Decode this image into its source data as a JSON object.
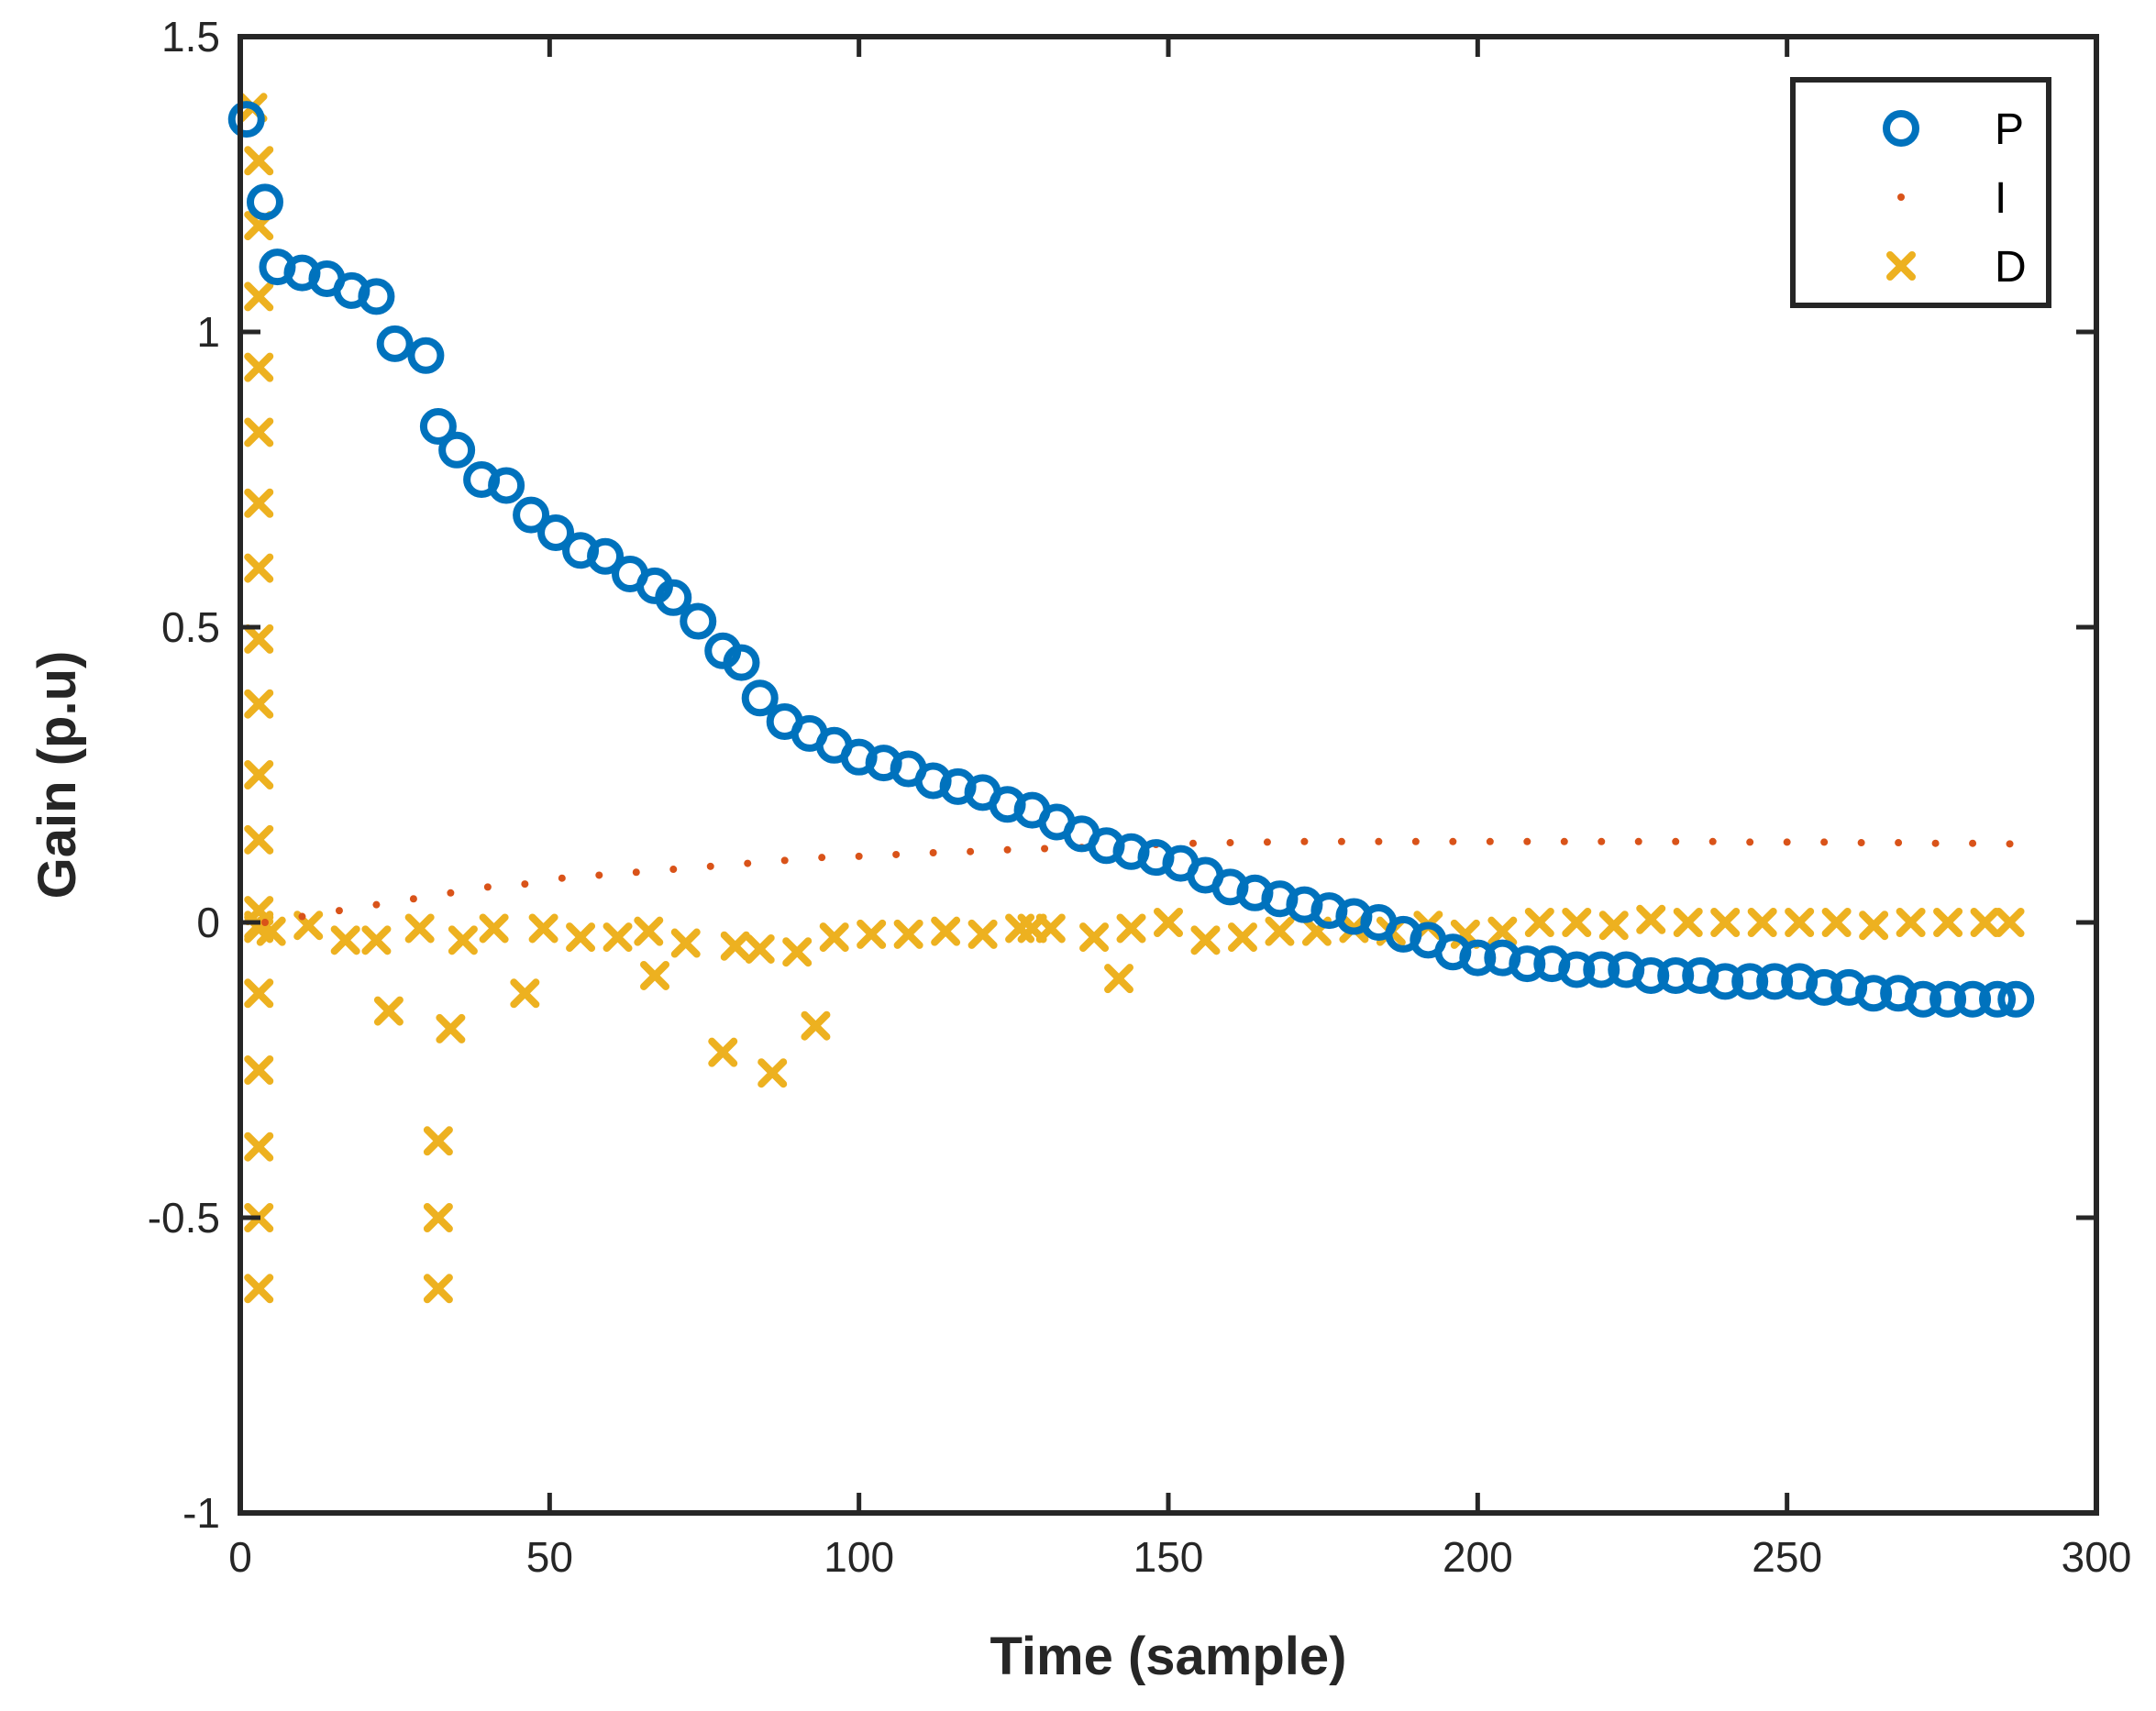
{
  "chart_data": {
    "type": "scatter",
    "title": "",
    "xlabel": "Time (sample)",
    "ylabel": "Gain (p.u)",
    "xlim": [
      0,
      300
    ],
    "ylim": [
      -1,
      1.5
    ],
    "xticks": [
      0,
      50,
      100,
      150,
      200,
      250,
      300
    ],
    "xtick_labels": [
      "0",
      "50",
      "100",
      "150",
      "200",
      "250",
      "300"
    ],
    "yticks": [
      -1,
      -0.5,
      0,
      0.5,
      1,
      1.5
    ],
    "ytick_labels": [
      "-1",
      "-0.5",
      "0",
      "0.5",
      "1",
      "1.5"
    ],
    "grid": false,
    "legend_position": "top-right",
    "colors": {
      "P": "#0072BD",
      "I": "#D95319",
      "D": "#EDB120",
      "axis": "#262626"
    },
    "series": [
      {
        "name": "P",
        "marker": "circle",
        "x": [
          1,
          4,
          6,
          10,
          14,
          18,
          22,
          25,
          30,
          32,
          35,
          39,
          43,
          47,
          51,
          55,
          59,
          63,
          67,
          70,
          74,
          78,
          81,
          84,
          88,
          92,
          96,
          100,
          104,
          108,
          112,
          116,
          120,
          124,
          128,
          132,
          136,
          140,
          144,
          148,
          152,
          156,
          160,
          164,
          168,
          172,
          176,
          180,
          184,
          188,
          192,
          196,
          200,
          204,
          208,
          212,
          216,
          220,
          224,
          228,
          232,
          236,
          240,
          244,
          248,
          252,
          256,
          260,
          264,
          268,
          272,
          276,
          280,
          284,
          287
        ],
        "y": [
          1.36,
          1.22,
          1.11,
          1.1,
          1.09,
          1.07,
          1.06,
          0.98,
          0.96,
          0.84,
          0.8,
          0.75,
          0.74,
          0.69,
          0.66,
          0.63,
          0.62,
          0.59,
          0.57,
          0.55,
          0.51,
          0.46,
          0.44,
          0.38,
          0.34,
          0.32,
          0.3,
          0.28,
          0.27,
          0.26,
          0.24,
          0.23,
          0.22,
          0.2,
          0.19,
          0.17,
          0.15,
          0.13,
          0.12,
          0.11,
          0.1,
          0.08,
          0.06,
          0.05,
          0.04,
          0.03,
          0.02,
          0.01,
          0.0,
          -0.02,
          -0.03,
          -0.05,
          -0.06,
          -0.06,
          -0.07,
          -0.07,
          -0.08,
          -0.08,
          -0.08,
          -0.09,
          -0.09,
          -0.09,
          -0.1,
          -0.1,
          -0.1,
          -0.1,
          -0.11,
          -0.11,
          -0.12,
          -0.12,
          -0.13,
          -0.13,
          -0.13,
          -0.13,
          -0.13
        ]
      },
      {
        "name": "I",
        "marker": "dot",
        "x": [
          4,
          10,
          16,
          22,
          28,
          34,
          40,
          46,
          52,
          58,
          64,
          70,
          76,
          82,
          88,
          94,
          100,
          106,
          112,
          118,
          124,
          130,
          136,
          142,
          148,
          154,
          160,
          166,
          172,
          178,
          184,
          190,
          196,
          202,
          208,
          214,
          220,
          226,
          232,
          238,
          244,
          250,
          256,
          262,
          268,
          274,
          280,
          286
        ],
        "y": [
          0.0,
          0.01,
          0.02,
          0.03,
          0.04,
          0.05,
          0.06,
          0.065,
          0.075,
          0.08,
          0.085,
          0.09,
          0.095,
          0.1,
          0.105,
          0.11,
          0.112,
          0.115,
          0.118,
          0.12,
          0.123,
          0.125,
          0.127,
          0.13,
          0.132,
          0.134,
          0.135,
          0.136,
          0.137,
          0.137,
          0.137,
          0.137,
          0.137,
          0.137,
          0.137,
          0.137,
          0.137,
          0.137,
          0.137,
          0.137,
          0.136,
          0.136,
          0.136,
          0.135,
          0.135,
          0.134,
          0.134,
          0.133
        ]
      },
      {
        "name": "D",
        "marker": "x",
        "x": [
          2,
          3,
          3,
          3,
          3,
          3,
          3,
          3,
          3,
          3,
          3,
          3,
          3,
          3,
          3,
          3,
          3,
          3,
          3,
          3,
          5,
          11,
          17,
          22,
          24,
          29,
          32,
          32,
          32,
          34,
          36,
          41,
          46,
          49,
          55,
          61,
          66,
          67,
          72,
          78,
          80,
          84,
          86,
          90,
          93,
          96,
          102,
          108,
          114,
          120,
          126,
          128,
          131,
          138,
          142,
          144,
          150,
          156,
          162,
          168,
          174,
          180,
          186,
          192,
          198,
          204,
          210,
          216,
          222,
          228,
          234,
          240,
          246,
          252,
          258,
          264,
          270,
          276,
          282,
          286
        ],
        "y": [
          1.38,
          1.29,
          1.18,
          1.06,
          0.94,
          0.83,
          0.71,
          0.6,
          0.48,
          0.37,
          0.25,
          0.14,
          0.02,
          -0.12,
          -0.25,
          -0.38,
          -0.5,
          -0.62,
          -0.005,
          -0.01,
          -0.015,
          -0.005,
          -0.03,
          -0.03,
          -0.15,
          -0.01,
          -0.37,
          -0.5,
          -0.62,
          -0.18,
          -0.03,
          -0.01,
          -0.12,
          -0.01,
          -0.025,
          -0.025,
          -0.015,
          -0.09,
          -0.035,
          -0.22,
          -0.04,
          -0.045,
          -0.255,
          -0.05,
          -0.175,
          -0.025,
          -0.02,
          -0.02,
          -0.015,
          -0.02,
          -0.01,
          -0.01,
          -0.01,
          -0.025,
          -0.095,
          -0.01,
          0.0,
          -0.03,
          -0.025,
          -0.015,
          -0.015,
          -0.01,
          -0.015,
          -0.005,
          -0.02,
          -0.015,
          0.0,
          0.0,
          -0.005,
          0.005,
          0.0,
          0.0,
          0.0,
          0.0,
          0.0,
          -0.005,
          0.0,
          0.0,
          0.0,
          0.0
        ]
      }
    ]
  }
}
